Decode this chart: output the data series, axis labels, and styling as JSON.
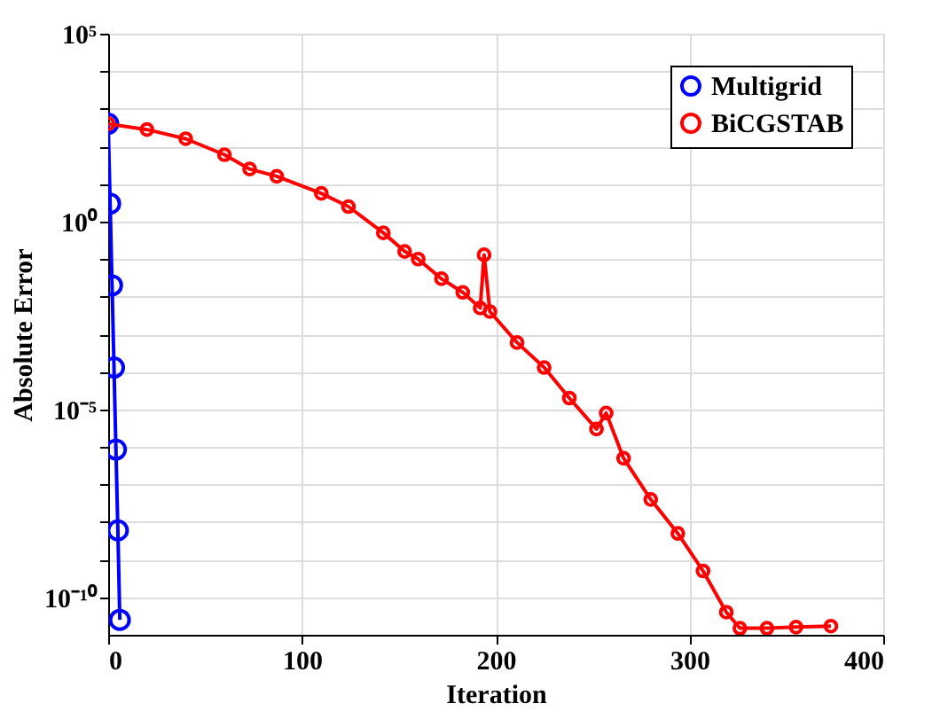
{
  "chart_data": {
    "type": "line",
    "xlabel": "Iteration",
    "ylabel": "Absolute Error",
    "log": "y",
    "xlim": [
      0,
      400
    ],
    "xticks": [
      0,
      100,
      200,
      300,
      400
    ],
    "ylim": [
      1e-11,
      100000.0
    ],
    "yticks": [
      {
        "value": 100000.0,
        "label": "10⁵"
      },
      {
        "value": 10000.0,
        "label": null
      },
      {
        "value": 1000.0,
        "label": null
      },
      {
        "value": 100.0,
        "label": null
      },
      {
        "value": 10.0,
        "label": null
      },
      {
        "value": 1,
        "label": "10⁰"
      },
      {
        "value": 0.1,
        "label": null
      },
      {
        "value": 0.01,
        "label": null
      },
      {
        "value": 0.001,
        "label": null
      },
      {
        "value": 0.0001,
        "label": null
      },
      {
        "value": 1e-05,
        "label": "10⁻⁵"
      },
      {
        "value": 1e-06,
        "label": null
      },
      {
        "value": 1e-07,
        "label": null
      },
      {
        "value": 1e-08,
        "label": null
      },
      {
        "value": 1e-09,
        "label": null
      },
      {
        "value": 1e-10,
        "label": "10⁻¹⁰"
      }
    ],
    "grid": true,
    "legend": "top right",
    "marker": "circle",
    "line_style": "solid",
    "series": [
      {
        "name": "Multigrid",
        "color": "#0000ff",
        "x": [
          0,
          1,
          2,
          3,
          4,
          5,
          6
        ],
        "values": [
          400.0,
          3,
          0.02,
          0.00013,
          8.5e-07,
          6e-09,
          2.5e-11
        ]
      },
      {
        "name": "BiCGSTAB",
        "color": "#ff0000",
        "x": [
          0,
          20,
          40,
          60,
          73,
          87,
          110,
          124,
          142,
          153,
          160,
          172,
          183,
          192,
          194,
          197,
          211,
          225,
          238,
          252,
          257,
          266,
          280,
          294,
          307,
          319,
          326,
          340,
          355,
          373
        ],
        "values": [
          400.0,
          280.0,
          160.0,
          60.0,
          25.0,
          16.0,
          5.6,
          2.5,
          0.5,
          0.16,
          0.1,
          0.03,
          0.013,
          0.005,
          0.13,
          0.004,
          0.0006,
          0.00013,
          2e-05,
          3e-06,
          8e-06,
          5e-07,
          4e-08,
          5e-09,
          5e-10,
          4e-11,
          1.5e-11,
          1.5e-11,
          1.6e-11,
          1.7e-11
        ]
      }
    ]
  }
}
